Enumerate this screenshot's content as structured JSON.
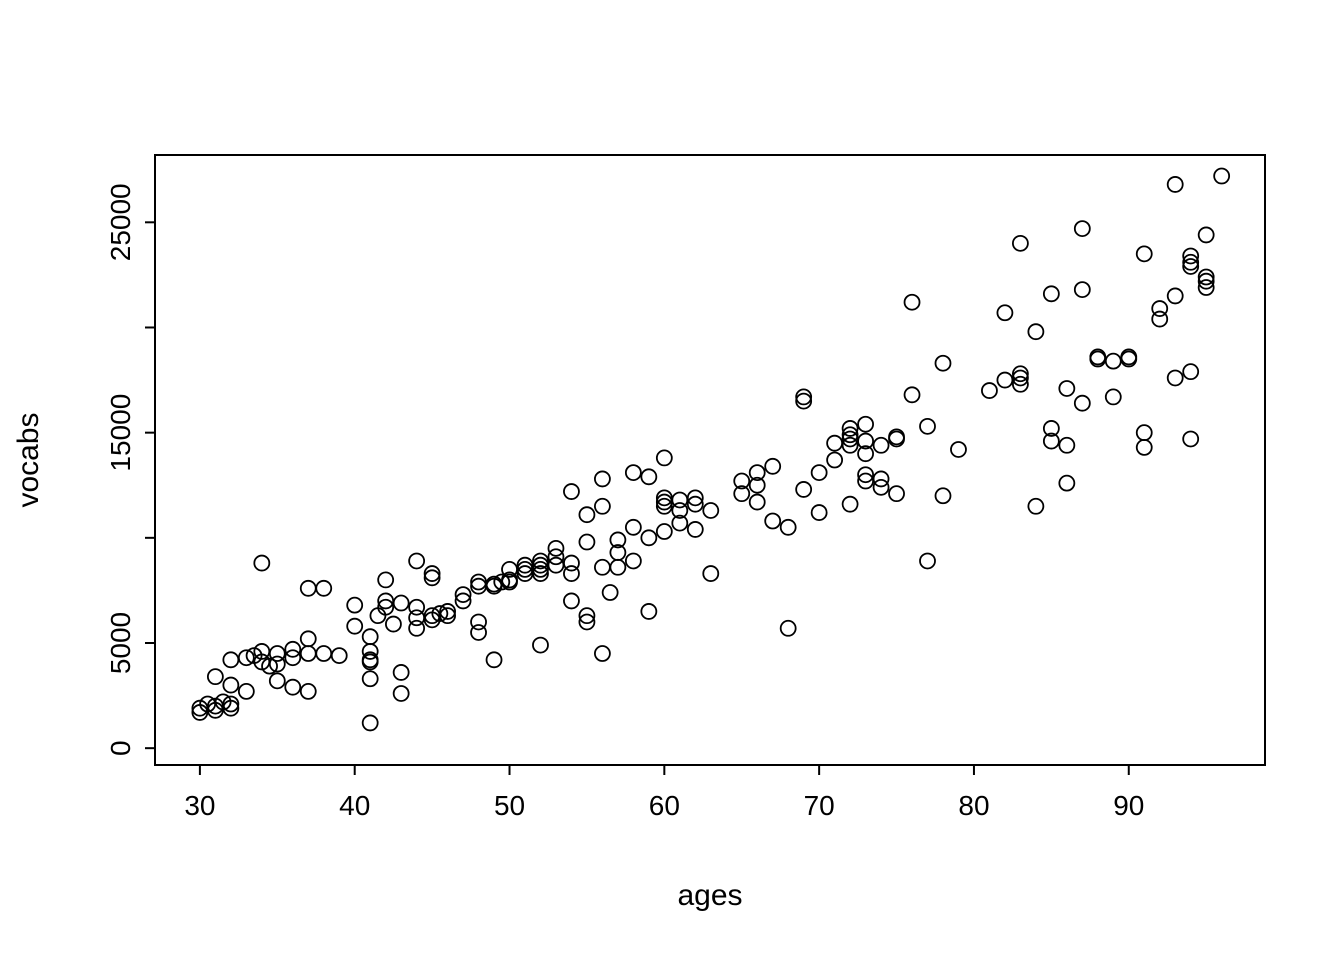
{
  "figure": {
    "background": "#ffffff",
    "foreground": "#000000"
  },
  "chart_data": {
    "type": "scatter",
    "title": "",
    "xlabel": "ages",
    "ylabel": "vocabs",
    "xlim": [
      27.1,
      98.8
    ],
    "ylim": [
      -800,
      28200
    ],
    "xticks": [
      30,
      40,
      50,
      60,
      70,
      80,
      90
    ],
    "xtick_labels": [
      "30",
      "40",
      "50",
      "60",
      "70",
      "80",
      "90"
    ],
    "yticks": [
      0,
      5000,
      10000,
      15000,
      20000,
      25000
    ],
    "ytick_labels": [
      "0",
      "5000",
      "",
      "15000",
      "",
      "25000"
    ],
    "grid": false,
    "legend": "none",
    "marker": "open-circle",
    "marker_color": "#000000",
    "points": [
      [
        30,
        1900
      ],
      [
        30,
        1700
      ],
      [
        30.5,
        2100
      ],
      [
        31,
        2000
      ],
      [
        31,
        1800
      ],
      [
        31,
        3400
      ],
      [
        31.5,
        2200
      ],
      [
        32,
        1900
      ],
      [
        32,
        2100
      ],
      [
        32,
        3000
      ],
      [
        32,
        4200
      ],
      [
        33,
        2700
      ],
      [
        33,
        4300
      ],
      [
        33.5,
        4400
      ],
      [
        34,
        8800
      ],
      [
        34,
        4100
      ],
      [
        34.5,
        3900
      ],
      [
        34,
        4600
      ],
      [
        35,
        4500
      ],
      [
        35,
        4000
      ],
      [
        35,
        3200
      ],
      [
        36,
        4700
      ],
      [
        36,
        4300
      ],
      [
        36,
        2900
      ],
      [
        37,
        5200
      ],
      [
        37,
        7600
      ],
      [
        37,
        4500
      ],
      [
        37,
        2700
      ],
      [
        38,
        7600
      ],
      [
        38,
        4500
      ],
      [
        39,
        4400
      ],
      [
        40,
        6800
      ],
      [
        40,
        5800
      ],
      [
        41,
        5300
      ],
      [
        41,
        4600
      ],
      [
        41,
        4200
      ],
      [
        41,
        4100
      ],
      [
        41,
        3300
      ],
      [
        41,
        1200
      ],
      [
        41.5,
        6300
      ],
      [
        42,
        6700
      ],
      [
        42,
        7000
      ],
      [
        42,
        8000
      ],
      [
        42.5,
        5900
      ],
      [
        43,
        3600
      ],
      [
        43,
        6900
      ],
      [
        43,
        2600
      ],
      [
        44,
        8900
      ],
      [
        44,
        6700
      ],
      [
        44,
        6200
      ],
      [
        44,
        5700
      ],
      [
        45,
        8300
      ],
      [
        45,
        8100
      ],
      [
        45,
        6300
      ],
      [
        45,
        6100
      ],
      [
        45.5,
        6400
      ],
      [
        46,
        6300
      ],
      [
        46,
        6500
      ],
      [
        47,
        7300
      ],
      [
        47,
        7000
      ],
      [
        48,
        7900
      ],
      [
        48,
        7700
      ],
      [
        48,
        6000
      ],
      [
        48,
        5500
      ],
      [
        49,
        7800
      ],
      [
        49,
        7700
      ],
      [
        49,
        4200
      ],
      [
        49.5,
        7900
      ],
      [
        50,
        8000
      ],
      [
        50,
        7900
      ],
      [
        50,
        8500
      ],
      [
        51,
        8700
      ],
      [
        51,
        8500
      ],
      [
        51,
        8300
      ],
      [
        52,
        8900
      ],
      [
        52,
        8700
      ],
      [
        52,
        8500
      ],
      [
        52,
        8300
      ],
      [
        52,
        4900
      ],
      [
        53,
        9500
      ],
      [
        53,
        9100
      ],
      [
        53,
        8700
      ],
      [
        54,
        12200
      ],
      [
        54,
        8800
      ],
      [
        54,
        8300
      ],
      [
        54,
        7000
      ],
      [
        55,
        11100
      ],
      [
        55,
        9800
      ],
      [
        55,
        6300
      ],
      [
        55,
        6000
      ],
      [
        56,
        12800
      ],
      [
        56,
        11500
      ],
      [
        56,
        8600
      ],
      [
        56,
        4500
      ],
      [
        56.5,
        7400
      ],
      [
        57,
        9900
      ],
      [
        57,
        8600
      ],
      [
        57,
        9300
      ],
      [
        58,
        13100
      ],
      [
        58,
        10500
      ],
      [
        58,
        8900
      ],
      [
        59,
        12900
      ],
      [
        59,
        10000
      ],
      [
        59,
        6500
      ],
      [
        60,
        13800
      ],
      [
        60,
        11900
      ],
      [
        60,
        11700
      ],
      [
        60,
        11500
      ],
      [
        60,
        10300
      ],
      [
        61,
        11800
      ],
      [
        61,
        11300
      ],
      [
        61,
        10700
      ],
      [
        62,
        11900
      ],
      [
        62,
        11600
      ],
      [
        62,
        10400
      ],
      [
        63,
        11300
      ],
      [
        63,
        8300
      ],
      [
        65,
        12700
      ],
      [
        65,
        12100
      ],
      [
        66,
        13100
      ],
      [
        66,
        12500
      ],
      [
        66,
        11700
      ],
      [
        67,
        13400
      ],
      [
        67,
        10800
      ],
      [
        68,
        5700
      ],
      [
        68,
        10500
      ],
      [
        69,
        16700
      ],
      [
        69,
        16500
      ],
      [
        69,
        12300
      ],
      [
        70,
        13100
      ],
      [
        70,
        11200
      ],
      [
        71,
        14500
      ],
      [
        71,
        13700
      ],
      [
        72,
        15200
      ],
      [
        72,
        14900
      ],
      [
        72,
        14700
      ],
      [
        72,
        14400
      ],
      [
        72,
        11600
      ],
      [
        73,
        15400
      ],
      [
        73,
        14600
      ],
      [
        73,
        14000
      ],
      [
        73,
        13000
      ],
      [
        73,
        12700
      ],
      [
        74,
        14400
      ],
      [
        74,
        12800
      ],
      [
        74,
        12400
      ],
      [
        75,
        14800
      ],
      [
        75,
        14700
      ],
      [
        75,
        12100
      ],
      [
        76,
        21200
      ],
      [
        76,
        16800
      ],
      [
        77,
        8900
      ],
      [
        77,
        15300
      ],
      [
        78,
        12000
      ],
      [
        78,
        18300
      ],
      [
        79,
        14200
      ],
      [
        81,
        17000
      ],
      [
        82,
        20700
      ],
      [
        82,
        17500
      ],
      [
        83,
        24000
      ],
      [
        83,
        17800
      ],
      [
        83,
        17600
      ],
      [
        83,
        17300
      ],
      [
        84,
        11500
      ],
      [
        84,
        19800
      ],
      [
        85,
        21600
      ],
      [
        85,
        14600
      ],
      [
        85,
        15200
      ],
      [
        86,
        17100
      ],
      [
        86,
        14400
      ],
      [
        86,
        12600
      ],
      [
        87,
        24700
      ],
      [
        87,
        21800
      ],
      [
        87,
        16400
      ],
      [
        88,
        18600
      ],
      [
        88,
        18500
      ],
      [
        89,
        18400
      ],
      [
        89,
        16700
      ],
      [
        90,
        18600
      ],
      [
        90,
        18500
      ],
      [
        91,
        23500
      ],
      [
        91,
        15000
      ],
      [
        91,
        14300
      ],
      [
        92,
        20900
      ],
      [
        92,
        20400
      ],
      [
        93,
        26800
      ],
      [
        93,
        21500
      ],
      [
        93,
        17600
      ],
      [
        94,
        23400
      ],
      [
        94,
        23100
      ],
      [
        94,
        22900
      ],
      [
        94,
        17900
      ],
      [
        94,
        14700
      ],
      [
        95,
        24400
      ],
      [
        95,
        22400
      ],
      [
        95,
        22200
      ],
      [
        95,
        21900
      ],
      [
        96,
        27200
      ]
    ]
  }
}
